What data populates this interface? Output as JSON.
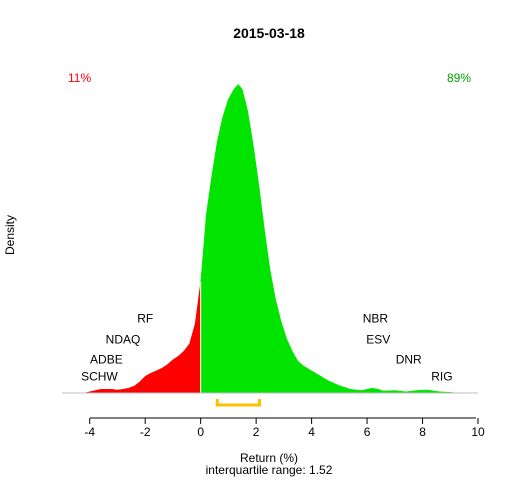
{
  "chart_data": {
    "type": "area",
    "title": "2015-03-18",
    "xlabel": "Return (%)",
    "ylabel": "Density",
    "subtitle": "interquartile range: 1.52",
    "xlim": [
      -5,
      10
    ],
    "xticks": [
      -4,
      -2,
      0,
      2,
      4,
      6,
      8,
      10
    ],
    "threshold": 0,
    "negative_share": "11%",
    "positive_share": "89%",
    "colors": {
      "negative": "#ff0000",
      "positive": "#00e400",
      "iqr": "#ffc000",
      "baseline": "#bebebe"
    },
    "iqr_range": [
      0.6,
      2.12
    ],
    "density": {
      "x": [
        -4.2,
        -4.0,
        -3.8,
        -3.6,
        -3.4,
        -3.2,
        -3.0,
        -2.8,
        -2.6,
        -2.4,
        -2.2,
        -2.0,
        -1.8,
        -1.6,
        -1.4,
        -1.2,
        -1.0,
        -0.8,
        -0.6,
        -0.4,
        -0.2,
        0.0,
        0.1,
        0.2,
        0.4,
        0.6,
        0.8,
        1.0,
        1.2,
        1.35,
        1.5,
        1.7,
        1.9,
        2.1,
        2.3,
        2.5,
        2.7,
        2.9,
        3.1,
        3.3,
        3.5,
        3.7,
        4.0,
        4.3,
        4.6,
        5.0,
        5.4,
        5.8,
        6.2,
        6.4,
        6.6,
        7.0,
        7.4,
        7.8,
        8.2,
        8.6,
        9.0,
        9.2
      ],
      "y": [
        0.0,
        0.005,
        0.01,
        0.015,
        0.015,
        0.015,
        0.012,
        0.015,
        0.02,
        0.028,
        0.045,
        0.068,
        0.08,
        0.09,
        0.1,
        0.115,
        0.135,
        0.15,
        0.17,
        0.2,
        0.28,
        0.45,
        0.58,
        0.72,
        0.88,
        1.02,
        1.12,
        1.19,
        1.23,
        1.25,
        1.23,
        1.14,
        1.0,
        0.84,
        0.66,
        0.5,
        0.38,
        0.29,
        0.22,
        0.17,
        0.13,
        0.11,
        0.09,
        0.07,
        0.05,
        0.03,
        0.015,
        0.01,
        0.02,
        0.015,
        0.008,
        0.01,
        0.005,
        0.01,
        0.012,
        0.005,
        0.003,
        0.0
      ],
      "ylim": [
        0,
        1.3
      ]
    },
    "labels": [
      {
        "text": "RF",
        "x": -2.0,
        "y": 0.285
      },
      {
        "text": "NDAQ",
        "x": -2.8,
        "y": 0.2
      },
      {
        "text": "ADBE",
        "x": -3.4,
        "y": 0.12
      },
      {
        "text": "SCHW",
        "x": -3.65,
        "y": 0.05
      },
      {
        "text": "NBR",
        "x": 6.3,
        "y": 0.285
      },
      {
        "text": "ESV",
        "x": 6.4,
        "y": 0.2
      },
      {
        "text": "DNR",
        "x": 7.5,
        "y": 0.12
      },
      {
        "text": "RIG",
        "x": 8.7,
        "y": 0.05
      }
    ]
  }
}
